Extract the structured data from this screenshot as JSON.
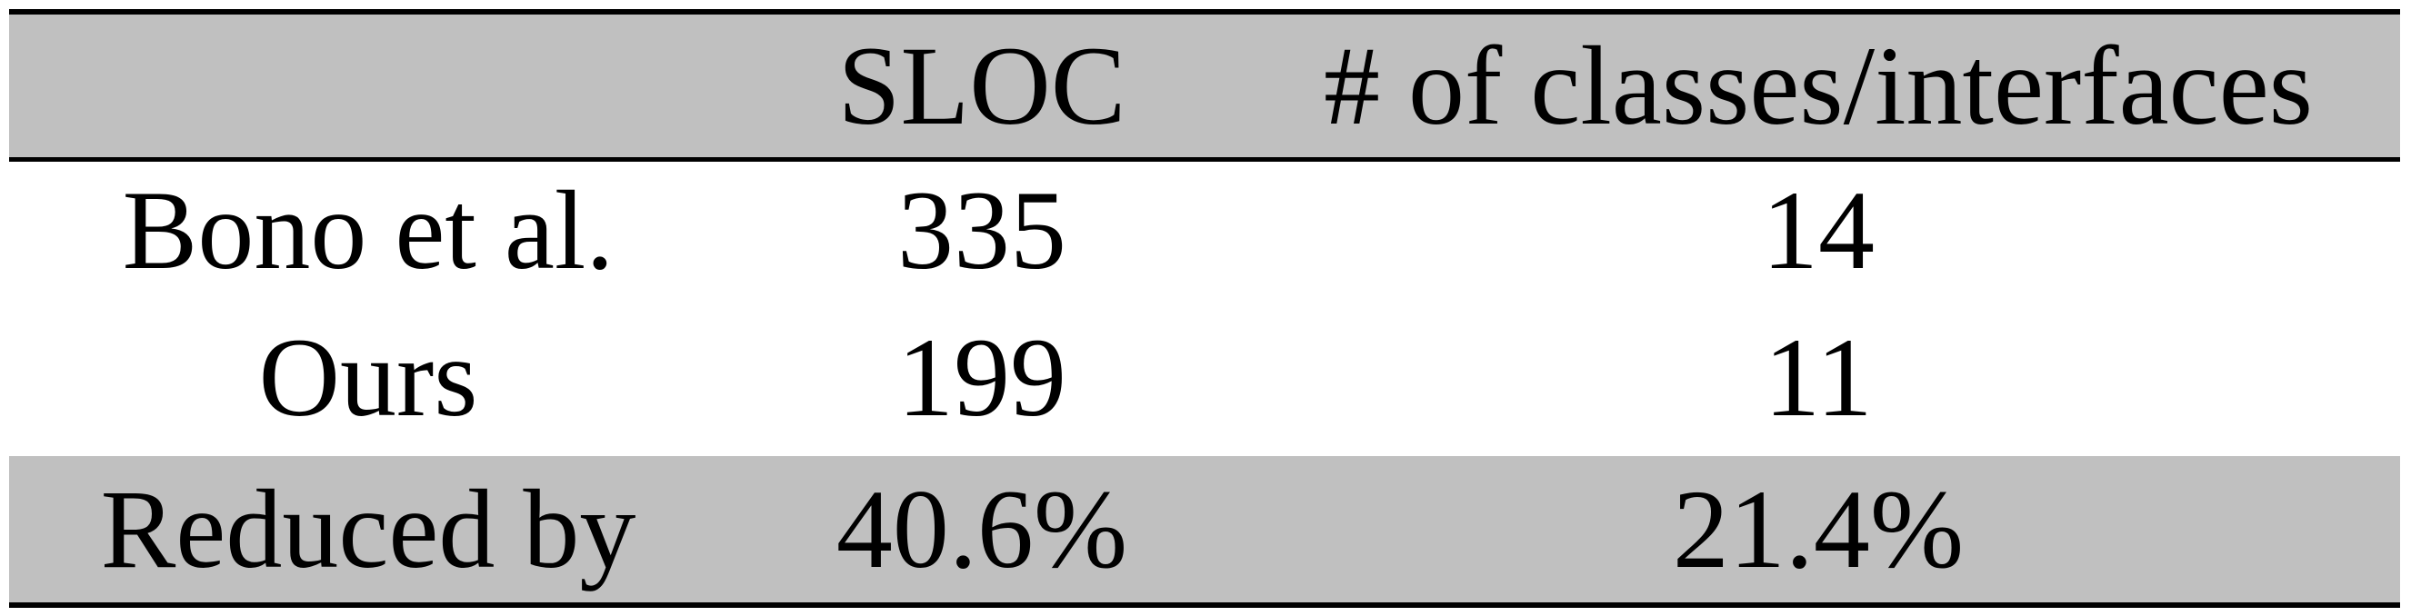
{
  "table": {
    "header": [
      "",
      "SLOC",
      "# of classes/interfaces"
    ],
    "rows": [
      [
        "Bono et al.",
        "335",
        "14"
      ],
      [
        "Ours",
        "199",
        "11"
      ],
      [
        "Reduced by",
        "40.6%",
        "21.4%"
      ]
    ]
  },
  "colors": {
    "shaded_row": "#c0c0c0",
    "rule": "#000000"
  }
}
